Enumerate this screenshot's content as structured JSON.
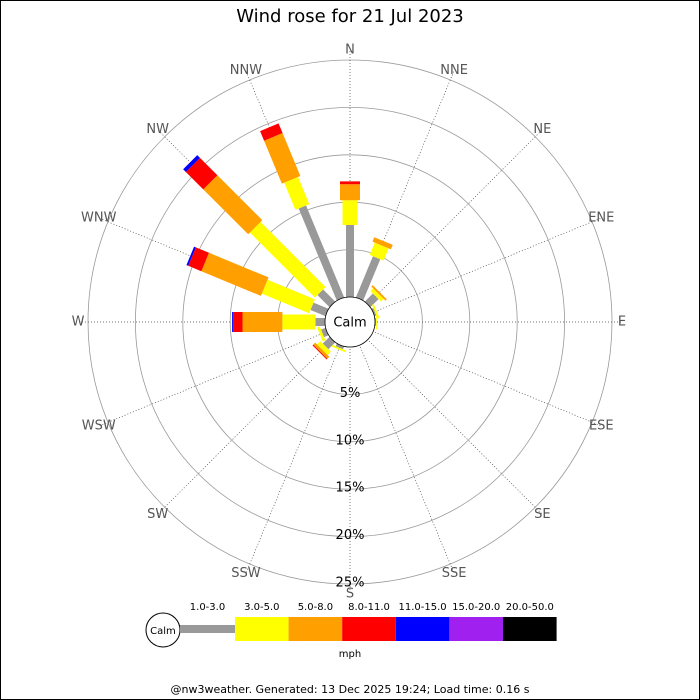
{
  "chart_data": {
    "type": "windrose",
    "title": "Wind rose for 21 Jul 2023",
    "categories": [
      "N",
      "NNE",
      "NE",
      "ENE",
      "E",
      "ESE",
      "SE",
      "SSE",
      "S",
      "SSW",
      "SW",
      "WSW",
      "W",
      "WNW",
      "NW",
      "NNW"
    ],
    "calm_label": "Calm",
    "series": [
      {
        "name": "1.0-3.0",
        "color": "#999999",
        "values": [
          7.6,
          4.7,
          1.2,
          0.2,
          0.1,
          0,
          0,
          0,
          0,
          0.3,
          1.0,
          0.5,
          1.0,
          1.7,
          1.8,
          10.5
        ]
      },
      {
        "name": "3.0-5.0",
        "color": "#ffff00",
        "values": [
          2.6,
          1.4,
          0.4,
          0.2,
          0.1,
          0,
          0,
          0,
          0,
          0.2,
          0.5,
          0.3,
          3.5,
          5.4,
          9.7,
          3.1
        ]
      },
      {
        "name": "5.0-8.0",
        "color": "#ffa000",
        "values": [
          1.7,
          0.5,
          0.2,
          0,
          0,
          0,
          0,
          0,
          0,
          0,
          0.3,
          0,
          4.2,
          6.8,
          6.7,
          4.9
        ]
      },
      {
        "name": "8.0-11.0",
        "color": "#ff0000",
        "values": [
          0.3,
          0,
          0,
          0,
          0,
          0,
          0,
          0,
          0,
          0,
          0.1,
          0,
          1.0,
          1.5,
          2.6,
          1.1
        ]
      },
      {
        "name": "11.0-15.0",
        "color": "#0000ff",
        "values": [
          0,
          0,
          0,
          0,
          0,
          0,
          0,
          0,
          0,
          0,
          0,
          0,
          0.1,
          0.2,
          0.4,
          0
        ]
      },
      {
        "name": "15.0-20.0",
        "color": "#a020f0",
        "values": [
          0,
          0,
          0,
          0,
          0,
          0,
          0,
          0,
          0,
          0,
          0,
          0,
          0,
          0,
          0,
          0
        ]
      },
      {
        "name": "20.0-50.0",
        "color": "#000000",
        "values": [
          0,
          0,
          0,
          0,
          0,
          0,
          0,
          0,
          0,
          0,
          0,
          0,
          0,
          0,
          0,
          0
        ]
      }
    ],
    "rlim": [
      0,
      25
    ],
    "rticks": [
      {
        "value": 5,
        "label": "5%"
      },
      {
        "value": 10,
        "label": "10%"
      },
      {
        "value": 15,
        "label": "15%"
      },
      {
        "value": 20,
        "label": "20%"
      },
      {
        "value": 25,
        "label": "25%"
      }
    ],
    "legend_unit": "mph",
    "footer": "@nw3weather. Generated: 13 Dec 2025 19:24; Load time: 0.16 s"
  }
}
